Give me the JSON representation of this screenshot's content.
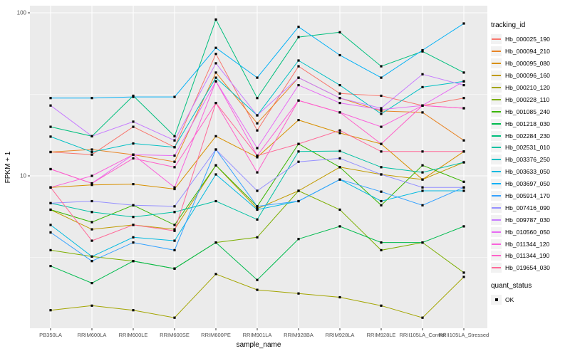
{
  "chart_data": {
    "type": "line",
    "title": "",
    "xlabel": "sample_name",
    "ylabel": "FPKM + 1",
    "y_scale": "log10",
    "ylim": [
      1.15,
      110
    ],
    "y_ticks": [
      10,
      100
    ],
    "y_tick_labels": [
      "10",
      "100"
    ],
    "y_minor_ticks": [
      3.162,
      31.62
    ],
    "grid": "on",
    "panel_bg": "#EBEBEB",
    "grid_color": "#FFFFFF",
    "tick_text_color": "#4D4D4D",
    "marker": "small-black-square",
    "categories": [
      "PB350LA",
      "RRIM600LA",
      "RRIM600LE",
      "RRIM600SE",
      "RRIM600PE",
      "RRIM901LA",
      "RRIM928BA",
      "RRIM928LA",
      "RRIM928LE",
      "RRII105LA_Control",
      "RRII105LA_Stressed"
    ],
    "legend": {
      "position": "right",
      "color_title": "tracking_id",
      "shape_title": "quant_status",
      "shape_label": "OK"
    },
    "series": [
      {
        "name": "Hb_000025_190",
        "color": "#F8766D",
        "values": [
          14,
          13.5,
          20,
          15,
          56,
          19,
          47,
          32,
          31,
          27,
          30
        ]
      },
      {
        "name": "Hb_000094_210",
        "color": "#E88526",
        "values": [
          14,
          14.5,
          13.5,
          12.2,
          43,
          21,
          40,
          30,
          25,
          24.5,
          16.5
        ]
      },
      {
        "name": "Hb_000095_080",
        "color": "#D89000",
        "values": [
          8.5,
          8.8,
          8.9,
          8.3,
          17.5,
          13,
          22,
          18.3,
          15.7,
          9.5,
          14.1
        ]
      },
      {
        "name": "Hb_000096_160",
        "color": "#C09B00",
        "values": [
          6.2,
          4.7,
          5.0,
          4.7,
          11.6,
          6.3,
          8.1,
          11.3,
          10.2,
          9.5,
          12.1
        ]
      },
      {
        "name": "Hb_000210_120",
        "color": "#A3A500",
        "values": [
          1.5,
          1.6,
          1.5,
          1.35,
          2.5,
          2.0,
          1.9,
          1.8,
          1.6,
          1.35,
          2.4
        ]
      },
      {
        "name": "Hb_000228_110",
        "color": "#7CAE00",
        "values": [
          3.5,
          3.2,
          3.0,
          2.7,
          3.9,
          4.2,
          8.1,
          6.2,
          3.5,
          3.9,
          2.55
        ]
      },
      {
        "name": "Hb_001085_240",
        "color": "#39B600",
        "values": [
          6.2,
          5.2,
          6.6,
          5.0,
          11.6,
          6.5,
          15.7,
          11.3,
          6.6,
          11.6,
          9.2
        ]
      },
      {
        "name": "Hb_001218_030",
        "color": "#00BB4E",
        "values": [
          2.8,
          2.2,
          3.0,
          2.7,
          3.9,
          2.3,
          4.1,
          4.9,
          3.9,
          3.9,
          4.9
        ]
      },
      {
        "name": "Hb_002284_230",
        "color": "#00BF7D",
        "values": [
          20,
          17.5,
          31,
          17.5,
          91,
          30,
          71,
          76,
          47,
          58,
          43
        ]
      },
      {
        "name": "Hb_002531_010",
        "color": "#00C1A3",
        "values": [
          6.8,
          6.0,
          5.6,
          6.0,
          7.0,
          5.4,
          14.1,
          14.2,
          11.3,
          10.5,
          12.1
        ]
      },
      {
        "name": "Hb_003376_250",
        "color": "#00BFC4",
        "values": [
          17.4,
          14,
          15.8,
          15,
          40,
          23.5,
          51,
          36,
          24,
          35,
          38
        ]
      },
      {
        "name": "Hb_003633_050",
        "color": "#00BAE0",
        "values": [
          5.0,
          3.2,
          4.2,
          4.0,
          10.2,
          6.2,
          7.0,
          9.5,
          7.0,
          8.1,
          8.1
        ]
      },
      {
        "name": "Hb_003697_050",
        "color": "#00B0F6",
        "values": [
          30,
          30,
          30.5,
          30.5,
          61,
          40,
          82,
          55,
          40,
          59,
          86
        ]
      },
      {
        "name": "Hb_005914_170",
        "color": "#35A2FF",
        "values": [
          4.5,
          3.0,
          3.9,
          3.5,
          14.5,
          6.5,
          7.0,
          9.5,
          8.0,
          6.6,
          8.5
        ]
      },
      {
        "name": "Hb_007416_090",
        "color": "#9590FF",
        "values": [
          6.8,
          7.0,
          6.6,
          6.5,
          14.5,
          8.1,
          12.2,
          12.8,
          10.2,
          8.5,
          8.5
        ]
      },
      {
        "name": "Hb_009787_030",
        "color": "#C77CFF",
        "values": [
          27,
          17.5,
          21.5,
          16.5,
          49,
          23.5,
          40,
          30,
          26,
          42,
          36
        ]
      },
      {
        "name": "Hb_010560_050",
        "color": "#E76BF3",
        "values": [
          11,
          9.0,
          13.5,
          13.3,
          38,
          14.8,
          36,
          28,
          25.5,
          27,
          38
        ]
      },
      {
        "name": "Hb_011344_120",
        "color": "#FA62DB",
        "values": [
          8.5,
          10,
          13.5,
          8.5,
          38,
          13.3,
          29,
          24.5,
          20,
          27,
          26
        ]
      },
      {
        "name": "Hb_011344_190",
        "color": "#FF61C9",
        "values": [
          11,
          9.0,
          12.8,
          11.3,
          28,
          10.5,
          29,
          24.5,
          15.7,
          27,
          26
        ]
      },
      {
        "name": "Hb_019654_030",
        "color": "#FF6A98",
        "values": [
          8.5,
          4.0,
          5.0,
          4.6,
          28,
          13.3,
          15.7,
          19,
          14.1,
          14.1,
          14.1
        ]
      }
    ]
  }
}
